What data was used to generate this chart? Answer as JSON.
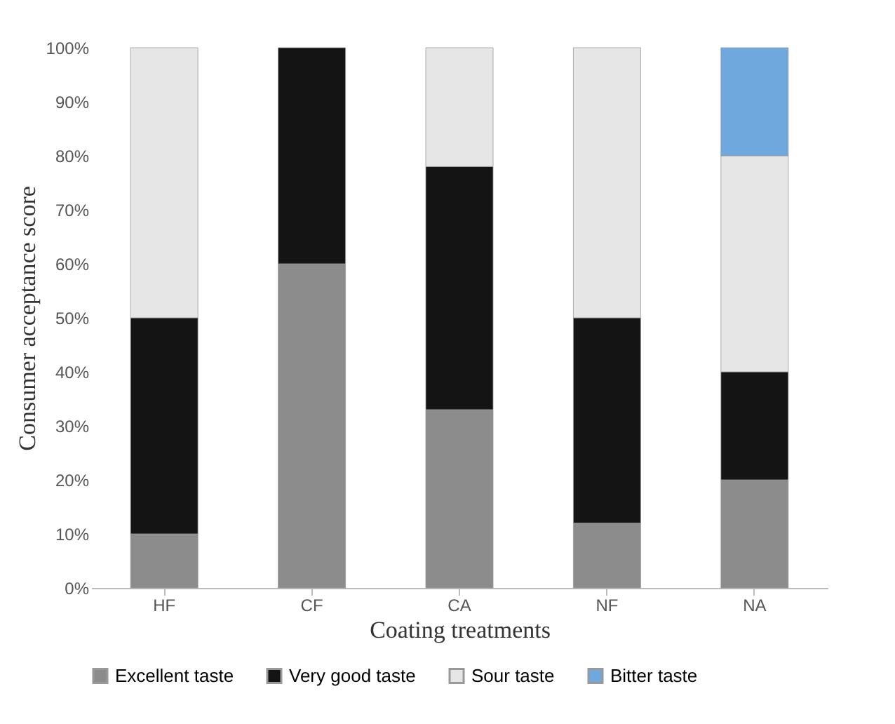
{
  "chart_data": {
    "type": "bar",
    "stacked": true,
    "xlabel": "Coating treatments",
    "ylabel": "Consumer acceptance score",
    "categories": [
      "HF",
      "CF",
      "CA",
      "NF",
      "NA"
    ],
    "series": [
      {
        "name": "Excellent taste",
        "color": "#8c8c8c",
        "values": [
          10,
          60,
          33,
          12,
          20
        ]
      },
      {
        "name": "Very good taste",
        "color": "#141414",
        "values": [
          40,
          40,
          45,
          38,
          20
        ]
      },
      {
        "name": "Sour taste",
        "color": "#e6e6e6",
        "values": [
          50,
          null,
          22,
          50,
          40
        ]
      },
      {
        "name": "Bitter taste",
        "color": "#6fa8dc",
        "values": [
          null,
          null,
          null,
          null,
          20
        ]
      }
    ],
    "ylim": [
      0,
      100
    ],
    "yticks": [
      {
        "value": 0,
        "label": "0%"
      },
      {
        "value": 10,
        "label": "10%"
      },
      {
        "value": 20,
        "label": "20%"
      },
      {
        "value": 30,
        "label": "30%"
      },
      {
        "value": 40,
        "label": "40%"
      },
      {
        "value": 50,
        "label": "50%"
      },
      {
        "value": 60,
        "label": "60%"
      },
      {
        "value": 70,
        "label": "70%"
      },
      {
        "value": 80,
        "label": "80%"
      },
      {
        "value": 90,
        "label": "90%"
      },
      {
        "value": 100,
        "label": "100%"
      }
    ],
    "grid": false,
    "legend": "bottom"
  }
}
